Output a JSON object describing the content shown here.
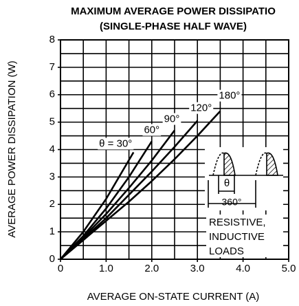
{
  "chart_data": {
    "type": "line",
    "title": "MAXIMUM AVERAGE POWER DISSIPATIO",
    "subtitle": "(SINGLE-PHASE HALF WAVE)",
    "x_label": "AVERAGE ON-STATE CURRENT  (A)",
    "y_label": "AVERAGE POWER DISSIPATION  (W)",
    "xlim": [
      0,
      5
    ],
    "ylim": [
      0,
      8
    ],
    "xticks": [
      0,
      {
        "value": 1,
        "label": "1.0"
      },
      {
        "value": 2,
        "label": "2.0"
      },
      {
        "value": 3,
        "label": "3.0"
      },
      {
        "value": 4,
        "label": "4.0"
      },
      {
        "value": 5,
        "label": "5.0"
      }
    ],
    "yticks": [
      0,
      1,
      2,
      3,
      4,
      5,
      6,
      7,
      8
    ],
    "grid": true,
    "xgrid": [
      0,
      0.5,
      1,
      1.5,
      2,
      2.5,
      3,
      3.5,
      4,
      4.5,
      5
    ],
    "ygrid": [
      0,
      0.5,
      1,
      1.5,
      2,
      2.5,
      3,
      3.5,
      4,
      4.5,
      5,
      5.5,
      6,
      6.5,
      7,
      7.5,
      8
    ],
    "series": [
      {
        "name": "θ = 30°",
        "color": "#000000",
        "x": [
          0,
          0.5,
          1,
          1.6
        ],
        "values": [
          0,
          1.0,
          2.2,
          3.9
        ]
      },
      {
        "name": "60°",
        "color": "#000000",
        "x": [
          0,
          0.5,
          1,
          1.5,
          2
        ],
        "values": [
          0,
          0.85,
          1.85,
          3.0,
          4.3
        ]
      },
      {
        "name": "90°",
        "color": "#000000",
        "x": [
          0,
          0.5,
          1,
          1.5,
          2,
          2.5
        ],
        "values": [
          0,
          0.8,
          1.65,
          2.6,
          3.6,
          4.7
        ]
      },
      {
        "name": "120°",
        "color": "#000000",
        "x": [
          0,
          0.5,
          1,
          1.5,
          2,
          2.5,
          3
        ],
        "values": [
          0,
          0.75,
          1.5,
          2.35,
          3.2,
          4.1,
          5.05
        ]
      },
      {
        "name": "180°",
        "color": "#000000",
        "x": [
          0,
          0.5,
          1,
          1.5,
          2,
          2.5,
          3,
          3.5
        ],
        "values": [
          0,
          0.7,
          1.4,
          2.1,
          2.85,
          3.65,
          4.5,
          5.4
        ]
      }
    ],
    "annotations": {
      "theta": "θ",
      "period": "360°",
      "load_1": "RESISTIVE,",
      "load_2": "INDUCTIVE",
      "load_3": "LOADS"
    }
  }
}
